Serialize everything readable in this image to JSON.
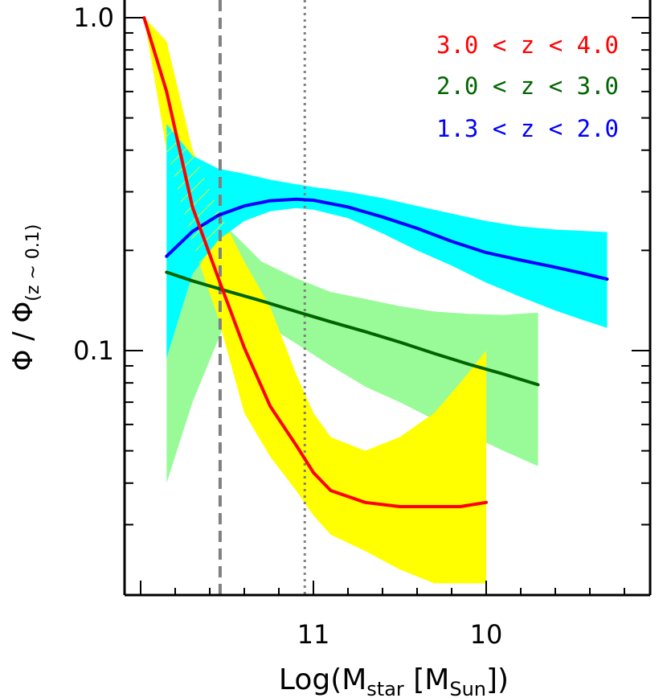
{
  "chart_data": {
    "type": "line",
    "xlabel": {
      "prefix": "Log(M",
      "sub1": "star",
      "middle": " [M",
      "sub2": "Sun",
      "suffix": "])"
    },
    "ylabel": {
      "main": "Φ / Φ",
      "sub": "(z ~ 0.1)"
    },
    "x_ticks": [
      {
        "value": 11,
        "label": "11"
      },
      {
        "value": 10,
        "label": "10"
      }
    ],
    "y_ticks": [
      {
        "value": 1.0,
        "label": "1.0"
      },
      {
        "value": 0.1,
        "label": "0.1"
      }
    ],
    "y_scale": "log",
    "ylim": [
      0.02,
      1.0
    ],
    "xlim_note": "x axis reversed: values decrease to the right",
    "reference_lines": [
      {
        "style": "dashed",
        "color": "#808080",
        "x": 11.54
      },
      {
        "style": "dotted",
        "color": "#808080",
        "x": 11.05
      }
    ],
    "legend": {
      "placement": "top-right",
      "entries": [
        {
          "text": "3.0 < z < 4.0",
          "color": "#ff0000"
        },
        {
          "text": "2.0 < z < 3.0",
          "color": "#006400"
        },
        {
          "text": "1.3 < z < 2.0",
          "color": "#0000ff"
        }
      ]
    },
    "series": [
      {
        "name": "1.3 < z < 2.0",
        "color": "#0000ff",
        "band_color": "#00ffff",
        "x": [
          11.85,
          11.7,
          11.55,
          11.4,
          11.25,
          11.1,
          11.0,
          10.8,
          10.6,
          10.4,
          10.2,
          10.0,
          9.8,
          9.6,
          9.45,
          9.3
        ],
        "y": [
          0.192,
          0.228,
          0.255,
          0.272,
          0.282,
          0.285,
          0.283,
          0.27,
          0.252,
          0.233,
          0.213,
          0.197,
          0.187,
          0.178,
          0.171,
          0.164
        ],
        "band_low": [
          0.095,
          0.17,
          0.215,
          0.245,
          0.262,
          0.268,
          0.265,
          0.25,
          0.225,
          0.2,
          0.18,
          0.16,
          0.145,
          0.132,
          0.124,
          0.117
        ],
        "band_high": [
          0.48,
          0.385,
          0.352,
          0.34,
          0.326,
          0.316,
          0.31,
          0.3,
          0.287,
          0.272,
          0.258,
          0.245,
          0.236,
          0.231,
          0.229,
          0.227
        ]
      },
      {
        "name": "2.0 < z < 3.0",
        "color": "#006400",
        "band_color": "#98fb98",
        "x": [
          11.85,
          11.7,
          11.5,
          11.3,
          11.1,
          10.9,
          10.7,
          10.5,
          10.3,
          10.1,
          9.9,
          9.7
        ],
        "y": [
          0.172,
          0.162,
          0.151,
          0.141,
          0.131,
          0.122,
          0.114,
          0.106,
          0.098,
          0.091,
          0.085,
          0.079
        ],
        "band_low": [
          0.04,
          0.07,
          0.125,
          0.122,
          0.105,
          0.09,
          0.078,
          0.07,
          0.062,
          0.056,
          0.05,
          0.045
        ],
        "band_high": [
          0.55,
          0.4,
          0.235,
          0.185,
          0.165,
          0.15,
          0.143,
          0.136,
          0.131,
          0.129,
          0.128,
          0.13
        ]
      },
      {
        "name": "3.0 < z < 4.0",
        "color": "#ff0000",
        "band_color": "#ffff00",
        "x": [
          11.98,
          11.85,
          11.7,
          11.55,
          11.4,
          11.25,
          11.1,
          11.0,
          10.9,
          10.7,
          10.5,
          10.3,
          10.15,
          10.0
        ],
        "y": [
          1.0,
          0.6,
          0.27,
          0.165,
          0.102,
          0.068,
          0.052,
          0.043,
          0.038,
          0.035,
          0.034,
          0.034,
          0.034,
          0.035
        ],
        "band_low": [
          1.0,
          0.4,
          0.21,
          0.125,
          0.065,
          0.048,
          0.038,
          0.032,
          0.028,
          0.025,
          0.022,
          0.02,
          0.02,
          0.02
        ],
        "band_high": [
          1.0,
          0.85,
          0.4,
          0.265,
          0.185,
          0.135,
          0.085,
          0.065,
          0.055,
          0.05,
          0.055,
          0.065,
          0.08,
          0.1
        ]
      }
    ]
  }
}
